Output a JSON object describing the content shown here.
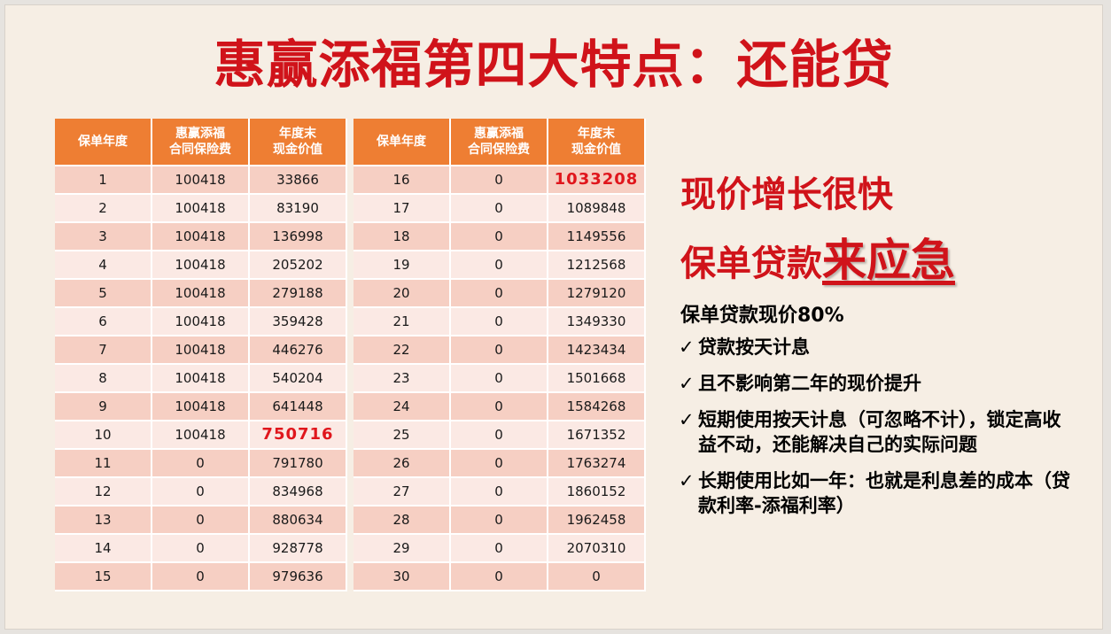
{
  "title": "惠赢添福第四大特点：还能贷",
  "table": {
    "headers": [
      "保单年度",
      "惠赢添福\n合同保险费",
      "年度末\n现金价值"
    ],
    "left_rows": [
      [
        "1",
        "100418",
        "33866"
      ],
      [
        "2",
        "100418",
        "83190"
      ],
      [
        "3",
        "100418",
        "136998"
      ],
      [
        "4",
        "100418",
        "205202"
      ],
      [
        "5",
        "100418",
        "279188"
      ],
      [
        "6",
        "100418",
        "359428"
      ],
      [
        "7",
        "100418",
        "446276"
      ],
      [
        "8",
        "100418",
        "540204"
      ],
      [
        "9",
        "100418",
        "641448"
      ],
      [
        "10",
        "100418",
        "750716"
      ],
      [
        "11",
        "0",
        "791780"
      ],
      [
        "12",
        "0",
        "834968"
      ],
      [
        "13",
        "0",
        "880634"
      ],
      [
        "14",
        "0",
        "928778"
      ],
      [
        "15",
        "0",
        "979636"
      ]
    ],
    "right_rows": [
      [
        "16",
        "0",
        "1033208"
      ],
      [
        "17",
        "0",
        "1089848"
      ],
      [
        "18",
        "0",
        "1149556"
      ],
      [
        "19",
        "0",
        "1212568"
      ],
      [
        "20",
        "0",
        "1279120"
      ],
      [
        "21",
        "0",
        "1349330"
      ],
      [
        "22",
        "0",
        "1423434"
      ],
      [
        "23",
        "0",
        "1501668"
      ],
      [
        "24",
        "0",
        "1584268"
      ],
      [
        "25",
        "0",
        "1671352"
      ],
      [
        "26",
        "0",
        "1763274"
      ],
      [
        "27",
        "0",
        "1860152"
      ],
      [
        "28",
        "0",
        "1962458"
      ],
      [
        "29",
        "0",
        "2070310"
      ],
      [
        "30",
        "0",
        "0"
      ]
    ],
    "highlight_color": "#e0161c"
  },
  "side": {
    "heading1": "现价增长很快",
    "heading2_prefix": "保单贷款",
    "heading2_emphasis": "来应急",
    "lead": "保单贷款现价80%",
    "check_symbol": "✓",
    "bullets": [
      "贷款按天计息",
      "且不影响第二年的现价提升",
      "短期使用按天计息（可忽略不计），锁定高收益不动，还能解决自己的实际问题",
      "长期使用比如一年：也就是利息差的成本（贷款利率-添福利率）"
    ]
  },
  "colors": {
    "title": "#d0131a",
    "header_bg": "#ee7e33",
    "row_dark": "#f6cfc3",
    "row_light": "#fbe9e4"
  }
}
